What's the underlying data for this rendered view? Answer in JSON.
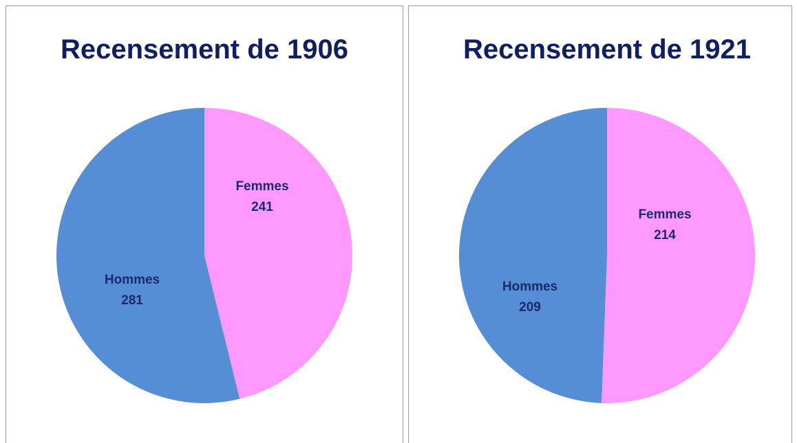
{
  "chart_data": [
    {
      "type": "pie",
      "title": "Recensement de 1906",
      "categories": [
        "Femmes",
        "Hommes"
      ],
      "values": [
        241,
        281
      ],
      "colors": [
        "#ff99ff",
        "#558ed5"
      ]
    },
    {
      "type": "pie",
      "title": "Recensement de 1921",
      "categories": [
        "Femmes",
        "Hommes"
      ],
      "values": [
        214,
        209
      ],
      "colors": [
        "#ff99ff",
        "#558ed5"
      ]
    }
  ]
}
